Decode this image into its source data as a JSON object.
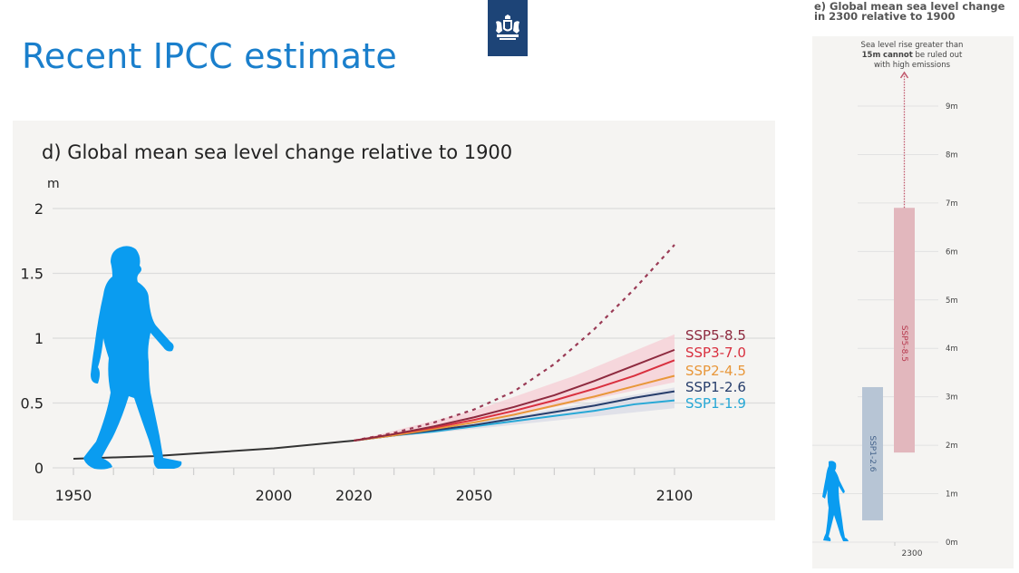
{
  "slide": {
    "title": "Recent IPCC estimate",
    "logo": "government-coat-of-arms-icon"
  },
  "colors": {
    "title": "#1a7fcc",
    "historical": "#333333",
    "ssp585": "#8e2a3f",
    "ssp370": "#d9303f",
    "ssp245": "#e8973a",
    "ssp126": "#263d6b",
    "ssp119": "#27a8d6",
    "band_high": "#f6cdd4",
    "band_low": "#d8dbe5",
    "human": "#0a9cf0",
    "bar_ssp585": "#e2b7bd",
    "bar_ssp126": "#b7c5d5"
  },
  "chart_data": [
    {
      "type": "line",
      "title": "d) Global mean sea level change relative to 1900",
      "xlabel": "",
      "ylabel": "m",
      "xlim": [
        1950,
        2100
      ],
      "ylim": [
        0,
        2
      ],
      "x_ticks": [
        1950,
        2000,
        2020,
        2050,
        2100
      ],
      "y_ticks": [
        0,
        0.5,
        1,
        1.5,
        2
      ],
      "y_tick_labels": [
        "0",
        "0.5",
        "1",
        "1.5",
        "2"
      ],
      "grid": true,
      "historical": {
        "name": "Observed",
        "x": [
          1950,
          1960,
          1970,
          1980,
          1990,
          2000,
          2010,
          2020
        ],
        "y": [
          0.07,
          0.08,
          0.09,
          0.11,
          0.13,
          0.15,
          0.18,
          0.21
        ]
      },
      "x": [
        2020,
        2030,
        2040,
        2050,
        2060,
        2070,
        2080,
        2090,
        2100
      ],
      "series": [
        {
          "name": "SSP5-8.5",
          "values": [
            0.21,
            0.26,
            0.32,
            0.39,
            0.47,
            0.56,
            0.67,
            0.79,
            0.91
          ]
        },
        {
          "name": "SSP3-7.0",
          "values": [
            0.21,
            0.26,
            0.31,
            0.37,
            0.44,
            0.52,
            0.61,
            0.71,
            0.83
          ]
        },
        {
          "name": "SSP2-4.5",
          "values": [
            0.21,
            0.25,
            0.3,
            0.35,
            0.41,
            0.48,
            0.55,
            0.63,
            0.71
          ]
        },
        {
          "name": "SSP1-2.6",
          "values": [
            0.21,
            0.25,
            0.29,
            0.33,
            0.38,
            0.43,
            0.48,
            0.54,
            0.59
          ]
        },
        {
          "name": "SSP1-1.9",
          "values": [
            0.21,
            0.25,
            0.28,
            0.32,
            0.36,
            0.4,
            0.44,
            0.49,
            0.52
          ]
        }
      ],
      "low_confidence": {
        "name": "SSP5-8.5 low-likelihood high-impact",
        "style": "dashed",
        "x": [
          2020,
          2030,
          2040,
          2050,
          2060,
          2070,
          2080,
          2090,
          2100
        ],
        "values": [
          0.21,
          0.27,
          0.35,
          0.45,
          0.59,
          0.8,
          1.07,
          1.38,
          1.72
        ]
      },
      "bands": [
        {
          "name": "SSP5-8.5 likely range",
          "x": [
            2020,
            2050,
            2075,
            2100
          ],
          "low": [
            0.21,
            0.34,
            0.5,
            0.66
          ],
          "high": [
            0.21,
            0.44,
            0.71,
            1.03
          ]
        },
        {
          "name": "SSP1-2.6 likely range",
          "x": [
            2020,
            2050,
            2075,
            2100
          ],
          "low": [
            0.21,
            0.3,
            0.38,
            0.46
          ],
          "high": [
            0.21,
            0.35,
            0.48,
            0.62
          ]
        }
      ],
      "legend": [
        "SSP5-8.5",
        "SSP3-7.0",
        "SSP2-4.5",
        "SSP1-2.6",
        "SSP1-1.9"
      ],
      "legend_position": "right"
    },
    {
      "type": "bar",
      "title": "e) Global mean sea level change in 2300 relative to 1900",
      "annotation_lines": [
        "Sea level rise greater than",
        "15m",
        "cannot",
        "be ruled out",
        "with high emissions"
      ],
      "xlabel": "2300",
      "ylabel": "",
      "ylim": [
        0,
        9
      ],
      "y_ticks": [
        0,
        1,
        2,
        3,
        4,
        5,
        6,
        7,
        8,
        9
      ],
      "y_tick_labels": [
        "0m",
        "1m",
        "2m",
        "3m",
        "4m",
        "5m",
        "6m",
        "7m",
        "8m",
        "9m"
      ],
      "bars": [
        {
          "name": "SSP1-2.6",
          "low": 0.45,
          "high": 3.2
        },
        {
          "name": "SSP5-8.5",
          "low": 1.85,
          "high": 6.9,
          "extends_beyond": 15
        }
      ]
    }
  ]
}
